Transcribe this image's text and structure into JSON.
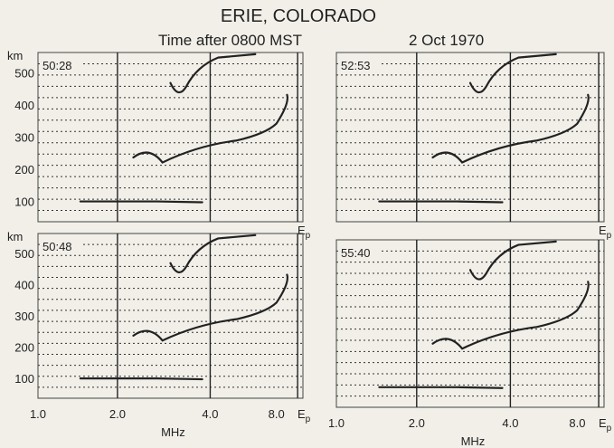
{
  "title": "ERIE, COLORADO",
  "subtitle": {
    "time_label": "Time after 0800 MST",
    "date": "2 Oct 1970"
  },
  "panels": [
    {
      "time": "50:28",
      "y_unit": "km",
      "y_labels": [
        "500",
        "400",
        "300",
        "200",
        "100"
      ],
      "end_label": {
        "base": "E",
        "sub": "p"
      }
    },
    {
      "time": "52:53",
      "end_label": {
        "base": "E",
        "sub": "p"
      }
    },
    {
      "time": "50:48",
      "y_unit": "km",
      "y_labels": [
        "500",
        "400",
        "300",
        "200",
        "100"
      ],
      "x_labels": [
        "1.0",
        "2.0",
        "4.0",
        "8.0"
      ],
      "x_unit": "MHz",
      "end_label": {
        "base": "E",
        "sub": "p"
      }
    },
    {
      "time": "55:40",
      "x_labels": [
        "1.0",
        "2.0",
        "4.0",
        "8.0"
      ],
      "x_unit": "MHz",
      "end_label": {
        "base": "E",
        "sub": "p"
      }
    }
  ]
}
